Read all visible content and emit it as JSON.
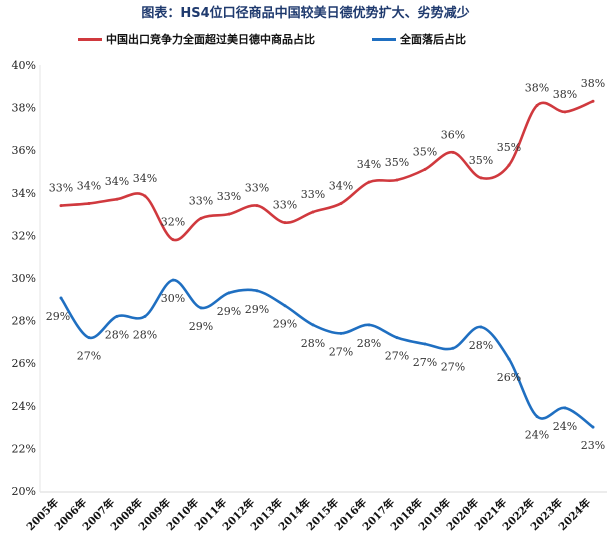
{
  "chart_data": {
    "type": "line",
    "title": "图表：HS4位口径商品中国较美日德优势扩大、劣势减少",
    "categories": [
      "2005年",
      "2006年",
      "2007年",
      "2008年",
      "2009年",
      "2010年",
      "2011年",
      "2012年",
      "2013年",
      "2014年",
      "2015年",
      "2016年",
      "2017年",
      "2018年",
      "2019年",
      "2020年",
      "2021年",
      "2022年",
      "2023年",
      "2024年"
    ],
    "ylim": [
      20,
      40
    ],
    "yticks": [
      "20%",
      "22%",
      "24%",
      "26%",
      "28%",
      "30%",
      "32%",
      "34%",
      "36%",
      "38%",
      "40%"
    ],
    "legend_position": "top",
    "series": [
      {
        "name": "中国出口竞争力全面超过美日德中商品占比",
        "color": "#d0393e",
        "values": [
          33.4,
          33.5,
          33.7,
          33.85,
          31.8,
          32.8,
          33.0,
          33.4,
          32.6,
          33.1,
          33.5,
          34.5,
          34.6,
          35.1,
          35.9,
          34.7,
          35.3,
          38.1,
          37.8,
          38.3
        ],
        "labels": [
          "33%",
          "34%",
          "34%",
          "34%",
          "32%",
          "33%",
          "33%",
          "33%",
          "33%",
          "33%",
          "34%",
          "34%",
          "35%",
          "35%",
          "36%",
          "35%",
          "35%",
          "38%",
          "38%",
          "38%"
        ]
      },
      {
        "name": "全面落后占比",
        "color": "#1f6fc1",
        "values": [
          29.06,
          27.2,
          28.2,
          28.2,
          29.9,
          28.6,
          29.3,
          29.4,
          28.7,
          27.8,
          27.4,
          27.8,
          27.2,
          26.9,
          26.7,
          27.7,
          26.2,
          23.5,
          23.9,
          23.0
        ],
        "labels": [
          "29%",
          "27%",
          "28%",
          "28%",
          "30%",
          "29%",
          "29%",
          "29%",
          "29%",
          "28%",
          "27%",
          "28%",
          "27%",
          "27%",
          "27%",
          "28%",
          "26%",
          "24%",
          "24%",
          "23%"
        ]
      }
    ]
  }
}
